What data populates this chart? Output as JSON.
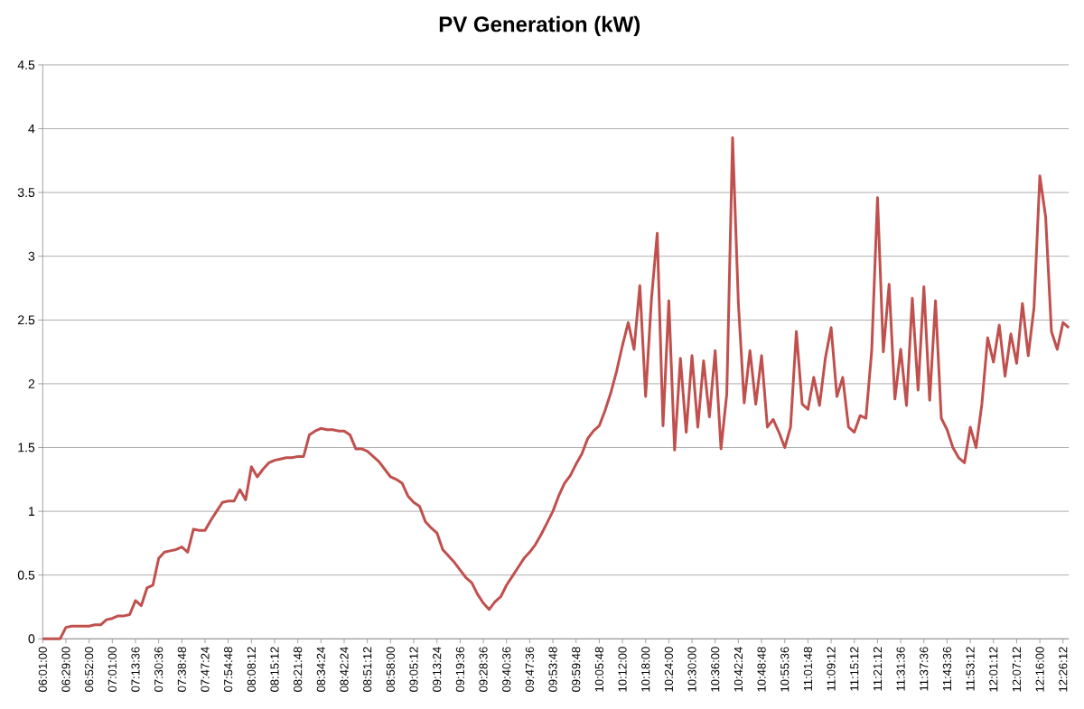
{
  "chart_data": {
    "type": "line",
    "title": "PV Generation (kW)",
    "categories": [
      "06:01:00",
      null,
      null,
      null,
      "06:29:00",
      null,
      null,
      null,
      "06:52:00",
      null,
      null,
      null,
      "07:01:00",
      null,
      null,
      null,
      "07:13:36",
      null,
      null,
      null,
      "07:30:36",
      null,
      null,
      null,
      "07:38:48",
      null,
      null,
      null,
      "07:47:24",
      null,
      null,
      null,
      "07:54:48",
      null,
      null,
      null,
      "08:08:12",
      null,
      null,
      null,
      "08:15:12",
      null,
      null,
      null,
      "08:21:48",
      null,
      null,
      null,
      "08:34:24",
      null,
      null,
      null,
      "08:42:24",
      null,
      null,
      null,
      "08:51:12",
      null,
      null,
      null,
      "08:58:00",
      null,
      null,
      null,
      "09:05:12",
      null,
      null,
      null,
      "09:13:24",
      null,
      null,
      null,
      "09:19:36",
      null,
      null,
      null,
      "09:28:36",
      null,
      null,
      null,
      "09:40:36",
      null,
      null,
      null,
      "09:47:36",
      null,
      null,
      null,
      "09:53:48",
      null,
      null,
      null,
      "09:59:48",
      null,
      null,
      null,
      "10:05:48",
      null,
      null,
      null,
      "10:12:00",
      null,
      null,
      null,
      "10:18:00",
      null,
      null,
      null,
      "10:24:00",
      null,
      null,
      null,
      "10:30:00",
      null,
      null,
      null,
      "10:36:00",
      null,
      null,
      null,
      "10:42:24",
      null,
      null,
      null,
      "10:48:48",
      null,
      null,
      null,
      "10:55:36",
      null,
      null,
      null,
      "11:01:48",
      null,
      null,
      null,
      "11:09:12",
      null,
      null,
      null,
      "11:15:12",
      null,
      null,
      null,
      "11:21:12",
      null,
      null,
      null,
      "11:31:36",
      null,
      null,
      null,
      "11:37:36",
      null,
      null,
      null,
      "11:43:36",
      null,
      null,
      null,
      "11:53:12",
      null,
      null,
      null,
      "12:01:12",
      null,
      null,
      null,
      "12:07:12",
      null,
      null,
      null,
      "12:16:00",
      null,
      null,
      null,
      "12:26:12",
      null
    ],
    "ylim": [
      0,
      4.5
    ],
    "yticks": [
      0,
      0.5,
      1,
      1.5,
      2,
      2.5,
      3,
      3.5,
      4,
      4.5
    ],
    "grid": "y",
    "marker": "none",
    "line_style": "solid",
    "series": [
      {
        "color": "#c0504d",
        "values": [
          0,
          0,
          0,
          0,
          0.09,
          0.1,
          0.1,
          0.1,
          0.1,
          0.11,
          0.11,
          0.15,
          0.16,
          0.18,
          0.18,
          0.19,
          0.3,
          0.26,
          0.4,
          0.42,
          0.63,
          0.68,
          0.69,
          0.7,
          0.72,
          0.68,
          0.86,
          0.85,
          0.85,
          0.93,
          1.0,
          1.07,
          1.08,
          1.08,
          1.17,
          1.09,
          1.35,
          1.27,
          1.33,
          1.38,
          1.4,
          1.41,
          1.42,
          1.42,
          1.43,
          1.43,
          1.6,
          1.63,
          1.65,
          1.64,
          1.64,
          1.63,
          1.63,
          1.6,
          1.49,
          1.49,
          1.47,
          1.43,
          1.39,
          1.33,
          1.27,
          1.25,
          1.22,
          1.12,
          1.07,
          1.04,
          0.92,
          0.87,
          0.83,
          0.7,
          0.65,
          0.6,
          0.54,
          0.48,
          0.44,
          0.35,
          0.28,
          0.23,
          0.29,
          0.33,
          0.42,
          0.49,
          0.56,
          0.63,
          0.68,
          0.74,
          0.82,
          0.91,
          1.0,
          1.12,
          1.22,
          1.28,
          1.37,
          1.45,
          1.57,
          1.63,
          1.67,
          1.79,
          1.93,
          2.1,
          2.3,
          2.48,
          2.27,
          2.77,
          1.9,
          2.66,
          3.18,
          1.67,
          2.65,
          1.48,
          2.2,
          1.62,
          2.22,
          1.66,
          2.18,
          1.74,
          2.26,
          1.49,
          1.92,
          3.93,
          2.63,
          1.85,
          2.26,
          1.84,
          2.22,
          1.66,
          1.72,
          1.62,
          1.5,
          1.66,
          2.41,
          1.84,
          1.8,
          2.05,
          1.83,
          2.2,
          2.44,
          1.9,
          2.05,
          1.66,
          1.62,
          1.75,
          1.73,
          2.26,
          3.46,
          2.25,
          2.78,
          1.88,
          2.27,
          1.83,
          2.67,
          1.95,
          2.76,
          1.87,
          2.65,
          1.73,
          1.64,
          1.5,
          1.42,
          1.38,
          1.66,
          1.5,
          1.84,
          2.36,
          2.17,
          2.46,
          2.06,
          2.39,
          2.16,
          2.63,
          2.22,
          2.6,
          3.63,
          3.31,
          2.41,
          2.27,
          2.48,
          2.44
        ]
      }
    ]
  }
}
